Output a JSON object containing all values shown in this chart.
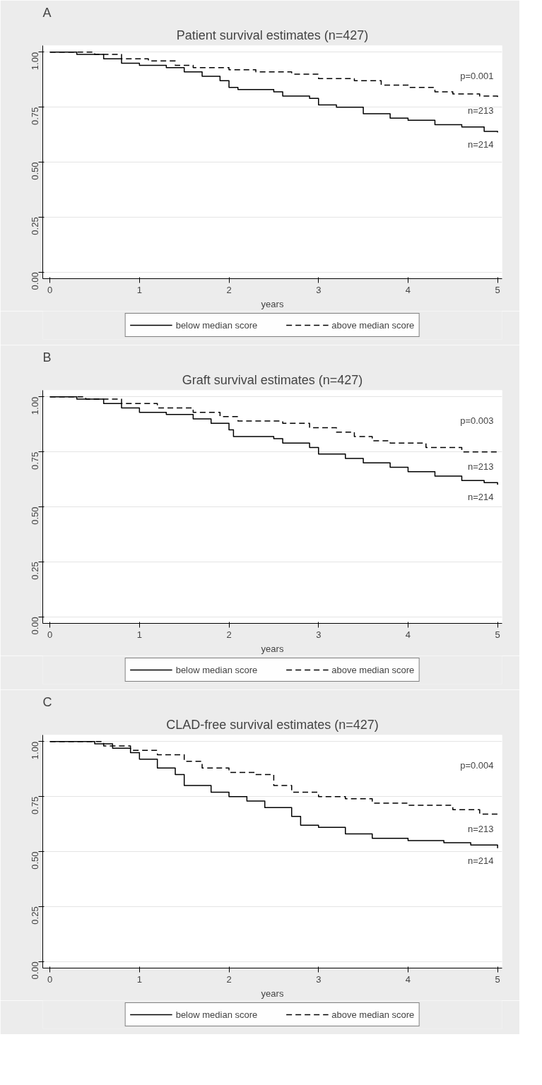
{
  "chart_data": [
    {
      "type": "step",
      "title": "Patient survival estimates (n=427)",
      "xlabel": "years",
      "annotations": [
        "A",
        "p=0.001",
        "n=213",
        "n=214"
      ],
      "xlim": [
        -0.08,
        5.05
      ],
      "xticks": [
        0,
        1,
        2,
        3,
        4,
        5
      ],
      "ylim": [
        -0.03,
        1.03
      ],
      "yticks": [
        {
          "value": 0,
          "label": "0.00"
        },
        {
          "value": 0.25,
          "label": "0.25"
        },
        {
          "value": 0.5,
          "label": "0.50"
        },
        {
          "value": 0.75,
          "label": "0.75"
        },
        {
          "value": 1,
          "label": "1.00"
        }
      ],
      "grid": "y",
      "legend": "bottom",
      "series": [
        {
          "name": "below median score",
          "color": "#000000",
          "line_style": "solid",
          "x": [
            0,
            0.3,
            0.6,
            0.8,
            1.0,
            1.3,
            1.5,
            1.7,
            1.9,
            2.0,
            2.1,
            2.5,
            2.6,
            2.9,
            3.0,
            3.2,
            3.5,
            3.8,
            4.0,
            4.3,
            4.6,
            4.85,
            5.0
          ],
          "values": [
            1,
            0.99,
            0.97,
            0.95,
            0.94,
            0.93,
            0.91,
            0.89,
            0.87,
            0.84,
            0.83,
            0.82,
            0.8,
            0.79,
            0.76,
            0.75,
            0.72,
            0.7,
            0.69,
            0.67,
            0.66,
            0.64,
            0.635
          ]
        },
        {
          "name": "above median score",
          "color": "#000000",
          "line_style": "dashed",
          "x": [
            0,
            0.5,
            0.8,
            1.1,
            1.4,
            1.6,
            2.0,
            2.3,
            2.7,
            3.0,
            3.4,
            3.7,
            4.0,
            4.3,
            4.5,
            4.8,
            5.0
          ],
          "values": [
            1,
            0.99,
            0.97,
            0.96,
            0.94,
            0.93,
            0.92,
            0.91,
            0.9,
            0.88,
            0.87,
            0.85,
            0.84,
            0.82,
            0.81,
            0.8,
            0.79
          ]
        }
      ]
    },
    {
      "type": "step",
      "title": "Graft survival estimates (n=427)",
      "xlabel": "years",
      "annotations": [
        "B",
        "p=0.003",
        "n=213",
        "n=214"
      ],
      "xlim": [
        -0.08,
        5.05
      ],
      "xticks": [
        0,
        1,
        2,
        3,
        4,
        5
      ],
      "ylim": [
        -0.03,
        1.03
      ],
      "yticks": [
        {
          "value": 0,
          "label": "0.00"
        },
        {
          "value": 0.25,
          "label": "0.25"
        },
        {
          "value": 0.5,
          "label": "0.50"
        },
        {
          "value": 0.75,
          "label": "0.75"
        },
        {
          "value": 1,
          "label": "1.00"
        }
      ],
      "grid": "y",
      "legend": "bottom",
      "series": [
        {
          "name": "below median score",
          "color": "#000000",
          "line_style": "solid",
          "x": [
            0,
            0.3,
            0.6,
            0.8,
            1.0,
            1.3,
            1.6,
            1.8,
            2.0,
            2.05,
            2.5,
            2.6,
            2.9,
            3.0,
            3.3,
            3.5,
            3.8,
            4.0,
            4.3,
            4.6,
            4.85,
            5.0
          ],
          "values": [
            1,
            0.99,
            0.97,
            0.95,
            0.93,
            0.92,
            0.9,
            0.88,
            0.85,
            0.82,
            0.81,
            0.79,
            0.77,
            0.74,
            0.72,
            0.7,
            0.68,
            0.66,
            0.64,
            0.62,
            0.61,
            0.6
          ]
        },
        {
          "name": "above median score",
          "color": "#000000",
          "line_style": "dashed",
          "x": [
            0,
            0.4,
            0.8,
            1.2,
            1.6,
            1.9,
            2.1,
            2.6,
            2.9,
            3.2,
            3.4,
            3.6,
            3.8,
            4.2,
            4.6,
            5.0
          ],
          "values": [
            1,
            0.99,
            0.97,
            0.95,
            0.93,
            0.91,
            0.89,
            0.88,
            0.86,
            0.84,
            0.82,
            0.8,
            0.79,
            0.77,
            0.75,
            0.74
          ]
        }
      ]
    },
    {
      "type": "step",
      "title": "CLAD-free survival estimates (n=427)",
      "xlabel": "years",
      "annotations": [
        "C",
        "p=0.004",
        "n=213",
        "n=214"
      ],
      "xlim": [
        -0.08,
        5.05
      ],
      "xticks": [
        0,
        1,
        2,
        3,
        4,
        5
      ],
      "ylim": [
        -0.03,
        1.03
      ],
      "yticks": [
        {
          "value": 0,
          "label": "0.00"
        },
        {
          "value": 0.25,
          "label": "0.25"
        },
        {
          "value": 0.5,
          "label": "0.50"
        },
        {
          "value": 0.75,
          "label": "0.75"
        },
        {
          "value": 1,
          "label": "1.00"
        }
      ],
      "grid": "y",
      "legend": "bottom",
      "series": [
        {
          "name": "below median score",
          "color": "#000000",
          "line_style": "solid",
          "x": [
            0,
            0.5,
            0.7,
            0.9,
            1.0,
            1.2,
            1.4,
            1.5,
            1.8,
            2.0,
            2.2,
            2.4,
            2.7,
            2.8,
            3.0,
            3.3,
            3.6,
            4.0,
            4.4,
            4.7,
            5.0
          ],
          "values": [
            1,
            0.99,
            0.97,
            0.95,
            0.92,
            0.88,
            0.85,
            0.8,
            0.77,
            0.75,
            0.73,
            0.7,
            0.66,
            0.62,
            0.61,
            0.58,
            0.56,
            0.55,
            0.54,
            0.53,
            0.515
          ]
        },
        {
          "name": "above median score",
          "color": "#000000",
          "line_style": "dashed",
          "x": [
            0,
            0.6,
            0.9,
            1.2,
            1.5,
            1.7,
            2.0,
            2.3,
            2.5,
            2.7,
            3.0,
            3.3,
            3.6,
            4.0,
            4.5,
            4.8,
            5.0
          ],
          "values": [
            1,
            0.98,
            0.96,
            0.94,
            0.91,
            0.88,
            0.86,
            0.85,
            0.8,
            0.77,
            0.75,
            0.74,
            0.72,
            0.71,
            0.69,
            0.67,
            0.66
          ]
        }
      ]
    }
  ]
}
